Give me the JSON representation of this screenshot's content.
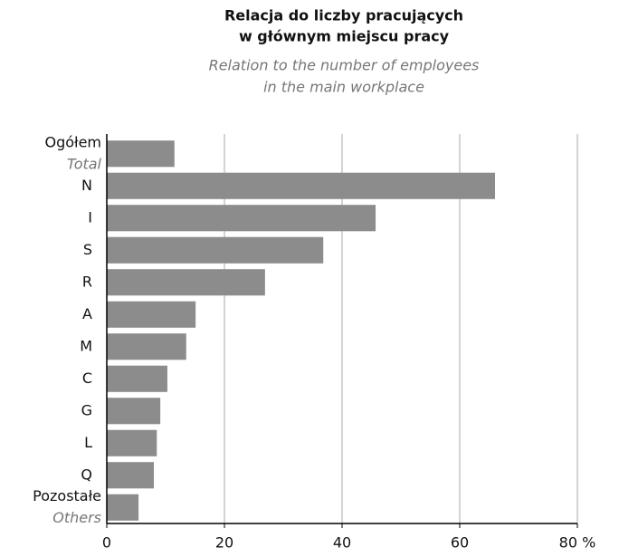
{
  "chart_data": {
    "type": "bar",
    "orientation": "horizontal",
    "title": [
      "Relacja do liczby pracujących",
      "w głównym miejscu pracy"
    ],
    "subtitle": [
      "Relation to the number of employees",
      "in the main workplace"
    ],
    "categories": [
      {
        "label": "Ogółem",
        "translation": "Total"
      },
      "N",
      "I",
      "S",
      "R",
      "A",
      "M",
      "C",
      "G",
      "L",
      "Q",
      {
        "label": "Pozostałe",
        "translation": "Others"
      }
    ],
    "values": [
      11.5,
      66,
      45.7,
      36.8,
      26.9,
      15.1,
      13.5,
      10.3,
      9.1,
      8.5,
      8.0,
      5.4
    ],
    "color": "#8c8c8c",
    "xlim": [
      0,
      80
    ],
    "xticks": [
      0,
      20,
      40,
      60,
      {
        "value": 80,
        "label": "80 %"
      }
    ],
    "grid": true
  }
}
